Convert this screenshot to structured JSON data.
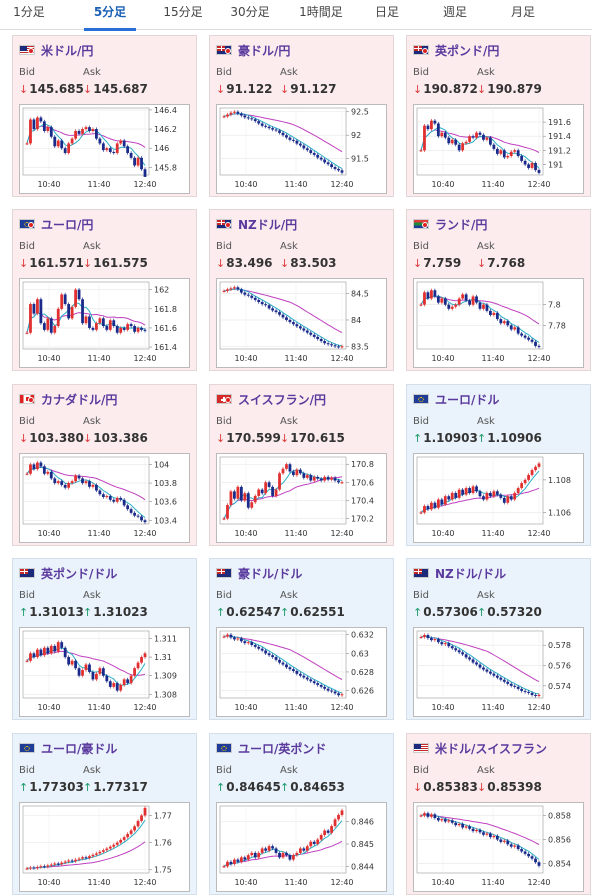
{
  "tabs": [
    {
      "label": "1分足",
      "active": false
    },
    {
      "label": "5分足",
      "active": true
    },
    {
      "label": "15分足",
      "active": false
    },
    {
      "label": "30分足",
      "active": false
    },
    {
      "label": "1時間足",
      "active": false
    },
    {
      "label": "日足",
      "active": false
    },
    {
      "label": "週足",
      "active": false
    },
    {
      "label": "月足",
      "active": false
    }
  ],
  "labels": {
    "bid": "Bid",
    "ask": "Ask"
  },
  "time_labels": [
    "10:40",
    "11:40",
    "12:40"
  ],
  "colors": {
    "up_card": "#eaf3fb",
    "down_card": "#fcecee",
    "candle_up": "#e03030",
    "candle_down": "#1a2a8a",
    "ma_fast": "#2ab0c8",
    "ma_slow": "#c040c0",
    "pair_name": "#5b3a9e",
    "arrow_down": "#e03a3a",
    "arrow_up": "#1a9a6a"
  },
  "cards": [
    {
      "name": "米ドル/円",
      "flag": "flag-us-jp",
      "dir": "down",
      "bid": "145.685",
      "ask": "145.687",
      "chart_data": {
        "type": "candlestick",
        "ylim": [
          145.72,
          146.42
        ],
        "ticks": [
          "146.4",
          "146.2",
          "146",
          "145.8"
        ],
        "tick_values": [
          146.4,
          146.2,
          146.0,
          145.8
        ],
        "closes": [
          146.05,
          146.3,
          146.2,
          146.32,
          146.28,
          146.18,
          146.22,
          146.12,
          146.02,
          146.08,
          146.0,
          145.95,
          146.05,
          146.1,
          146.18,
          146.15,
          146.2,
          146.22,
          146.18,
          146.2,
          146.1,
          146.05,
          145.98,
          146.0,
          145.96,
          145.95,
          146.05,
          146.08,
          146.02,
          145.95,
          145.9,
          145.82,
          145.9,
          145.78,
          145.7
        ]
      }
    },
    {
      "name": "豪ドル/円",
      "flag": "flag-au-jp",
      "dir": "down",
      "bid": "91.122",
      "ask": "91.127",
      "chart_data": {
        "type": "candlestick",
        "ylim": [
          91.15,
          92.58
        ],
        "ticks": [
          "92.5",
          "92",
          "91.5"
        ],
        "tick_values": [
          92.5,
          92.0,
          91.5
        ],
        "closes": [
          92.4,
          92.44,
          92.48,
          92.5,
          92.46,
          92.42,
          92.38,
          92.36,
          92.34,
          92.3,
          92.25,
          92.2,
          92.18,
          92.15,
          92.12,
          92.1,
          92.05,
          92.0,
          91.95,
          91.9,
          91.88,
          91.82,
          91.78,
          91.72,
          91.68,
          91.62,
          91.58,
          91.52,
          91.48,
          91.42,
          91.38,
          91.32,
          91.28,
          91.25,
          91.2
        ]
      }
    },
    {
      "name": "英ポンド/円",
      "flag": "flag-gb-jp",
      "dir": "down",
      "bid": "190.872",
      "ask": "190.879",
      "chart_data": {
        "type": "candlestick",
        "ylim": [
          190.85,
          191.8
        ],
        "ticks": [
          "191.6",
          "191.4",
          "191.2",
          "191"
        ],
        "tick_values": [
          191.6,
          191.4,
          191.2,
          191.0
        ],
        "closes": [
          191.2,
          191.55,
          191.5,
          191.62,
          191.58,
          191.4,
          191.45,
          191.38,
          191.3,
          191.35,
          191.28,
          191.2,
          191.3,
          191.32,
          191.4,
          191.38,
          191.45,
          191.42,
          191.35,
          191.38,
          191.28,
          191.22,
          191.15,
          191.2,
          191.1,
          191.12,
          191.18,
          191.2,
          191.12,
          191.05,
          191.0,
          190.95,
          191.02,
          190.92,
          190.88
        ]
      }
    },
    {
      "name": "ユーロ/円",
      "flag": "flag-eu-jp",
      "dir": "down",
      "bid": "161.571",
      "ask": "161.575",
      "chart_data": {
        "type": "candlestick",
        "ylim": [
          161.38,
          162.08
        ],
        "ticks": [
          "162",
          "161.8",
          "161.6",
          "161.4"
        ],
        "tick_values": [
          162.0,
          161.8,
          161.6,
          161.4
        ],
        "closes": [
          161.55,
          161.85,
          161.75,
          161.9,
          161.65,
          161.58,
          161.7,
          161.55,
          161.62,
          161.8,
          161.95,
          161.85,
          161.7,
          161.82,
          162.0,
          161.9,
          161.65,
          161.72,
          161.6,
          161.58,
          161.65,
          161.7,
          161.62,
          161.58,
          161.68,
          161.62,
          161.55,
          161.6,
          161.58,
          161.64,
          161.62,
          161.56,
          161.6,
          161.58,
          161.57
        ]
      }
    },
    {
      "name": "NZドル/円",
      "flag": "flag-nz-jp",
      "dir": "down",
      "bid": "83.496",
      "ask": "83.503",
      "chart_data": {
        "type": "candlestick",
        "ylim": [
          83.45,
          84.72
        ],
        "ticks": [
          "84.5",
          "84",
          "83.5"
        ],
        "tick_values": [
          84.5,
          84.0,
          83.5
        ],
        "closes": [
          84.55,
          84.58,
          84.6,
          84.62,
          84.58,
          84.52,
          84.48,
          84.46,
          84.42,
          84.38,
          84.34,
          84.3,
          84.28,
          84.22,
          84.18,
          84.15,
          84.1,
          84.05,
          84.0,
          83.96,
          83.92,
          83.88,
          83.84,
          83.8,
          83.76,
          83.72,
          83.68,
          83.64,
          83.6,
          83.56,
          83.54,
          83.52,
          83.5,
          83.49,
          83.5
        ]
      }
    },
    {
      "name": "ランド/円",
      "flag": "flag-za-jp",
      "dir": "down",
      "bid": "7.759",
      "ask": "7.768",
      "chart_data": {
        "type": "candlestick",
        "ylim": [
          7.757,
          7.822
        ],
        "ticks": [
          "7.8",
          "7.78"
        ],
        "tick_values": [
          7.8,
          7.78
        ],
        "closes": [
          7.8,
          7.812,
          7.806,
          7.814,
          7.808,
          7.802,
          7.806,
          7.8,
          7.796,
          7.798,
          7.8,
          7.806,
          7.81,
          7.804,
          7.8,
          7.808,
          7.802,
          7.796,
          7.8,
          7.794,
          7.79,
          7.792,
          7.786,
          7.782,
          7.784,
          7.78,
          7.776,
          7.778,
          7.772,
          7.77,
          7.768,
          7.766,
          7.764,
          7.76,
          7.759
        ]
      }
    },
    {
      "name": "カナダドル/円",
      "flag": "flag-ca-jp",
      "dir": "down",
      "bid": "103.380",
      "ask": "103.386",
      "chart_data": {
        "type": "candlestick",
        "ylim": [
          103.36,
          104.08
        ],
        "ticks": [
          "104",
          "103.8",
          "103.6",
          "103.4"
        ],
        "tick_values": [
          104.0,
          103.8,
          103.6,
          103.4
        ],
        "closes": [
          103.9,
          104.0,
          103.95,
          104.02,
          103.98,
          103.9,
          103.92,
          103.85,
          103.8,
          103.82,
          103.78,
          103.75,
          103.8,
          103.82,
          103.88,
          103.85,
          103.8,
          103.82,
          103.76,
          103.78,
          103.72,
          103.68,
          103.65,
          103.66,
          103.62,
          103.6,
          103.64,
          103.62,
          103.56,
          103.52,
          103.48,
          103.45,
          103.44,
          103.4,
          103.38
        ]
      }
    },
    {
      "name": "スイスフラン/円",
      "flag": "flag-ch-jp",
      "dir": "down",
      "bid": "170.599",
      "ask": "170.615",
      "chart_data": {
        "type": "candlestick",
        "ylim": [
          170.14,
          170.88
        ],
        "ticks": [
          "170.8",
          "170.6",
          "170.4",
          "170.2"
        ],
        "tick_values": [
          170.8,
          170.6,
          170.4,
          170.2
        ],
        "closes": [
          170.2,
          170.35,
          170.5,
          170.42,
          170.55,
          170.4,
          170.48,
          170.32,
          170.38,
          170.45,
          170.52,
          170.48,
          170.6,
          170.55,
          170.45,
          170.52,
          170.7,
          170.75,
          170.8,
          170.72,
          170.68,
          170.74,
          170.7,
          170.65,
          170.68,
          170.62,
          170.66,
          170.64,
          170.62,
          170.66,
          170.63,
          170.65,
          170.62,
          170.6,
          170.6
        ]
      }
    },
    {
      "name": "ユーロ/ドル",
      "flag": "flag-eu-us",
      "dir": "up",
      "bid": "1.10903",
      "ask": "1.10906",
      "chart_data": {
        "type": "candlestick",
        "ylim": [
          1.1053,
          1.1094
        ],
        "ticks": [
          "1.108",
          "1.106"
        ],
        "tick_values": [
          1.108,
          1.106
        ],
        "closes": [
          1.106,
          1.1064,
          1.1062,
          1.1066,
          1.1063,
          1.1068,
          1.1065,
          1.107,
          1.1068,
          1.1072,
          1.1069,
          1.1074,
          1.1071,
          1.1075,
          1.1072,
          1.1076,
          1.1073,
          1.107,
          1.1068,
          1.1072,
          1.107,
          1.1073,
          1.1071,
          1.1069,
          1.1066,
          1.107,
          1.1068,
          1.1072,
          1.1075,
          1.1078,
          1.108,
          1.1083,
          1.1086,
          1.1088,
          1.109
        ]
      }
    },
    {
      "name": "英ポンド/ドル",
      "flag": "flag-gb-us",
      "dir": "up",
      "bid": "1.31013",
      "ask": "1.31023",
      "chart_data": {
        "type": "candlestick",
        "ylim": [
          1.3078,
          1.3114
        ],
        "ticks": [
          "1.311",
          "1.31",
          "1.309",
          "1.308"
        ],
        "tick_values": [
          1.311,
          1.31,
          1.309,
          1.308
        ],
        "closes": [
          1.3098,
          1.3102,
          1.31,
          1.3104,
          1.3101,
          1.3105,
          1.3102,
          1.3106,
          1.3103,
          1.3108,
          1.3105,
          1.31,
          1.3096,
          1.3098,
          1.3094,
          1.309,
          1.3093,
          1.3096,
          1.3092,
          1.3088,
          1.3091,
          1.3094,
          1.309,
          1.3087,
          1.3084,
          1.3086,
          1.3082,
          1.3085,
          1.3088,
          1.3086,
          1.309,
          1.3094,
          1.3097,
          1.31,
          1.3102
        ]
      }
    },
    {
      "name": "豪ドル/ドル",
      "flag": "flag-au-us",
      "dir": "up",
      "bid": "0.62547",
      "ask": "0.62551",
      "chart_data": {
        "type": "candlestick",
        "ylim": [
          0.6252,
          0.6324
        ],
        "ticks": [
          "0.632",
          "0.63",
          "0.628",
          "0.626"
        ],
        "tick_values": [
          0.632,
          0.63,
          0.628,
          0.626
        ],
        "closes": [
          0.6318,
          0.632,
          0.6317,
          0.6315,
          0.6316,
          0.6313,
          0.6311,
          0.6312,
          0.6309,
          0.6307,
          0.6305,
          0.6303,
          0.63,
          0.6298,
          0.6296,
          0.6293,
          0.629,
          0.6288,
          0.6285,
          0.6283,
          0.6281,
          0.6278,
          0.6276,
          0.6274,
          0.6272,
          0.627,
          0.6268,
          0.6266,
          0.6264,
          0.6262,
          0.626,
          0.6259,
          0.6257,
          0.6255,
          0.6256
        ]
      }
    },
    {
      "name": "NZドル/ドル",
      "flag": "flag-nz-us",
      "dir": "up",
      "bid": "0.57306",
      "ask": "0.57320",
      "chart_data": {
        "type": "candlestick",
        "ylim": [
          0.5728,
          0.5794
        ],
        "ticks": [
          "0.578",
          "0.576",
          "0.574"
        ],
        "tick_values": [
          0.578,
          0.576,
          0.574
        ],
        "closes": [
          0.5788,
          0.579,
          0.5787,
          0.5785,
          0.5786,
          0.5783,
          0.5781,
          0.5782,
          0.5779,
          0.5777,
          0.5775,
          0.5773,
          0.5771,
          0.5768,
          0.5766,
          0.5763,
          0.5761,
          0.5758,
          0.5756,
          0.5754,
          0.5752,
          0.575,
          0.5748,
          0.5746,
          0.5744,
          0.5742,
          0.574,
          0.5739,
          0.5737,
          0.5735,
          0.5734,
          0.5733,
          0.5731,
          0.573,
          0.5731
        ]
      }
    },
    {
      "name": "ユーロ/豪ドル",
      "flag": "flag-eu-au",
      "dir": "up",
      "bid": "1.77303",
      "ask": "1.77317",
      "chart_data": {
        "type": "candlestick",
        "ylim": [
          1.7488,
          1.7735
        ],
        "ticks": [
          "1.77",
          "1.76",
          "1.75"
        ],
        "tick_values": [
          1.77,
          1.76,
          1.75
        ],
        "closes": [
          1.7505,
          1.7508,
          1.7506,
          1.751,
          1.7513,
          1.7511,
          1.7516,
          1.7519,
          1.7523,
          1.752,
          1.7526,
          1.753,
          1.7534,
          1.7531,
          1.7537,
          1.7541,
          1.7546,
          1.7543,
          1.755,
          1.7555,
          1.756,
          1.7566,
          1.7572,
          1.7578,
          1.7585,
          1.7592,
          1.76,
          1.761,
          1.762,
          1.7632,
          1.7645,
          1.766,
          1.768,
          1.77,
          1.7728
        ]
      }
    },
    {
      "name": "ユーロ/英ポンド",
      "flag": "flag-eu-gb",
      "dir": "up",
      "bid": "0.84645",
      "ask": "0.84653",
      "chart_data": {
        "type": "candlestick",
        "ylim": [
          0.8437,
          0.8467
        ],
        "ticks": [
          "0.846",
          "0.845",
          "0.844"
        ],
        "tick_values": [
          0.846,
          0.845,
          0.844
        ],
        "closes": [
          0.844,
          0.8442,
          0.8441,
          0.8443,
          0.8442,
          0.8444,
          0.8443,
          0.8445,
          0.8446,
          0.8444,
          0.8446,
          0.8448,
          0.8447,
          0.8449,
          0.8448,
          0.8446,
          0.8444,
          0.8446,
          0.8445,
          0.8443,
          0.8445,
          0.8446,
          0.8448,
          0.8447,
          0.8449,
          0.8451,
          0.845,
          0.8452,
          0.8454,
          0.8456,
          0.8455,
          0.8458,
          0.8461,
          0.8463,
          0.8465
        ]
      }
    },
    {
      "name": "米ドル/スイスフラン",
      "flag": "flag-us-ch",
      "dir": "down",
      "bid": "0.85383",
      "ask": "0.85398",
      "chart_data": {
        "type": "candlestick",
        "ylim": [
          0.8532,
          0.8588
        ],
        "ticks": [
          "0.858",
          "0.856",
          "0.854"
        ],
        "tick_values": [
          0.858,
          0.856,
          0.854
        ],
        "closes": [
          0.858,
          0.8582,
          0.8579,
          0.8581,
          0.8578,
          0.8576,
          0.8577,
          0.8575,
          0.8576,
          0.8574,
          0.8572,
          0.8573,
          0.857,
          0.8571,
          0.8569,
          0.8567,
          0.8568,
          0.8566,
          0.8564,
          0.8565,
          0.8562,
          0.8563,
          0.856,
          0.8558,
          0.8559,
          0.8556,
          0.8554,
          0.8555,
          0.8552,
          0.855,
          0.8548,
          0.8546,
          0.8544,
          0.8541,
          0.8538
        ]
      }
    }
  ]
}
